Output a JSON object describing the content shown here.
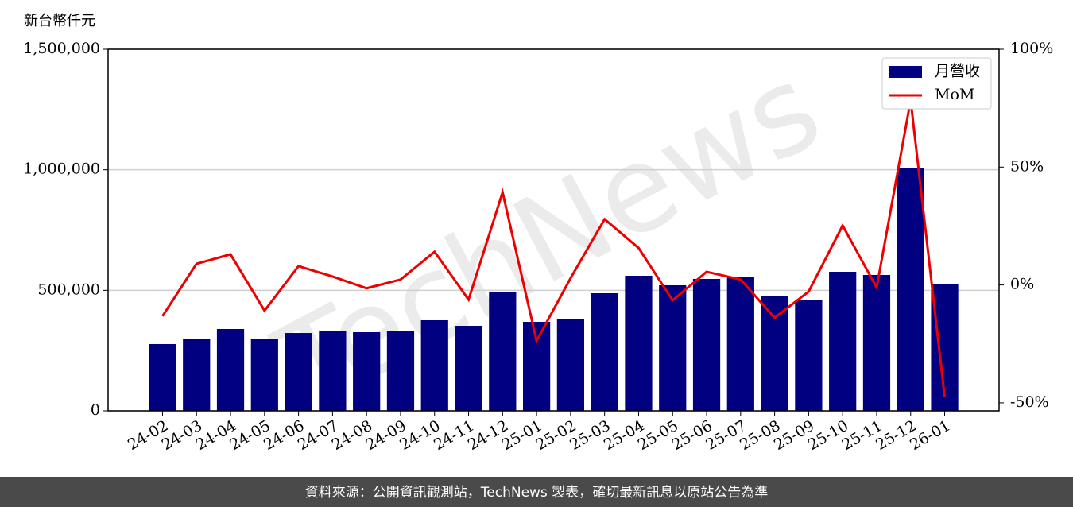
{
  "chart_data": {
    "type": "bar",
    "y_label": "新台幣仟元",
    "watermark": "TechNews",
    "footer": "資料來源：公開資訊觀測站，TechNews 製表，確切最新訊息以原站公告為準",
    "categories": [
      "24-02",
      "24-03",
      "24-04",
      "24-05",
      "24-06",
      "24-07",
      "24-08",
      "24-09",
      "24-10",
      "24-11",
      "24-12",
      "25-01",
      "25-02",
      "25-03",
      "25-04",
      "25-05",
      "25-06",
      "25-07",
      "25-08",
      "25-09",
      "25-10",
      "25-11",
      "25-12",
      "26-01"
    ],
    "series": [
      {
        "name": "月營收",
        "type": "bar",
        "color": "#000080",
        "values": [
          277000,
          300000,
          339600,
          300000,
          323000,
          333000,
          326400,
          329700,
          375800,
          352700,
          491200,
          369200,
          382400,
          487900,
          560400,
          520900,
          547300,
          557100,
          474700,
          461500,
          576900,
          563700,
          1005500,
          527500
        ]
      },
      {
        "name": "MoM",
        "type": "line",
        "axis": "y2",
        "color": "#ee0000",
        "values": [
          -13.2,
          9.0,
          13.0,
          -10.9,
          8.0,
          3.6,
          -1.4,
          2.3,
          14.1,
          -6.2,
          39.3,
          -23.7,
          2.9,
          27.9,
          15.7,
          -6.5,
          5.6,
          2.3,
          -13.9,
          -2.8,
          25.2,
          -1.1,
          78.4,
          -47.3
        ]
      }
    ],
    "ylim": [
      0,
      1500000
    ],
    "yticks": [
      0,
      {
        "value": 500000,
        "label": "500,000"
      },
      {
        "value": 1000000,
        "label": "1,000,000"
      },
      {
        "value": 1500000,
        "label": "1,500,000"
      }
    ],
    "y2lim": [
      -53.4,
      100
    ],
    "y2ticks": [
      {
        "value": -50,
        "label": "-50%"
      },
      {
        "value": 0,
        "label": "0%"
      },
      {
        "value": 50,
        "label": "50%"
      },
      {
        "value": 100,
        "label": "100%"
      }
    ],
    "grid": true,
    "legend": "upper right"
  }
}
